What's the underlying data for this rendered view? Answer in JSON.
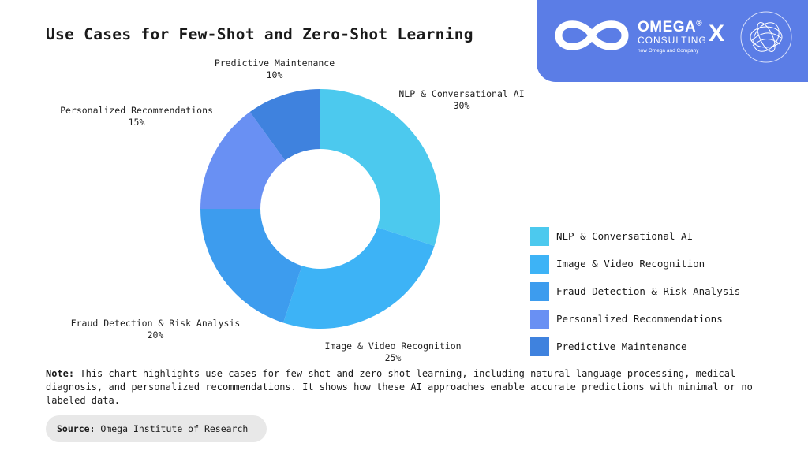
{
  "header": {
    "title": "Use Cases for Few-Shot and Zero-Shot Learning"
  },
  "branding": {
    "company_name": "OMEGA",
    "company_sub": "CONSULTING",
    "company_tagline": "now Omega and Company",
    "separator": "X",
    "registered_mark": "®",
    "panel_color": "#5b7de6",
    "company_icon": "infinity-logo",
    "partner_icon": "wireframe-sphere-logo"
  },
  "chart_data": {
    "type": "pie",
    "variant": "donut",
    "title": "Use Cases for Few-Shot and Zero-Shot Learning",
    "slices": [
      {
        "label": "NLP & Conversational AI",
        "value": 30,
        "display": "30%",
        "color": "#4cc9ee"
      },
      {
        "label": "Image & Video Recognition",
        "value": 25,
        "display": "25%",
        "color": "#3db3f6"
      },
      {
        "label": "Fraud Detection & Risk Analysis",
        "value": 20,
        "display": "20%",
        "color": "#3d9cee"
      },
      {
        "label": "Personalized Recommendations",
        "value": 15,
        "display": "15%",
        "color": "#6990f3"
      },
      {
        "label": "Predictive Maintenance",
        "value": 10,
        "display": "10%",
        "color": "#3f82de"
      }
    ],
    "start_angle": "12 o'clock",
    "direction": "clockwise",
    "legend_position": "right"
  },
  "footer": {
    "note_prefix": "Note:",
    "note_text": " This chart highlights use cases for few-shot and zero-shot learning, including natural language processing, medical diagnosis, and personalized recommendations. It shows how these AI approaches enable accurate predictions with minimal or no labeled data.",
    "source_prefix": "Source:",
    "source_text": " Omega Institute of Research"
  }
}
